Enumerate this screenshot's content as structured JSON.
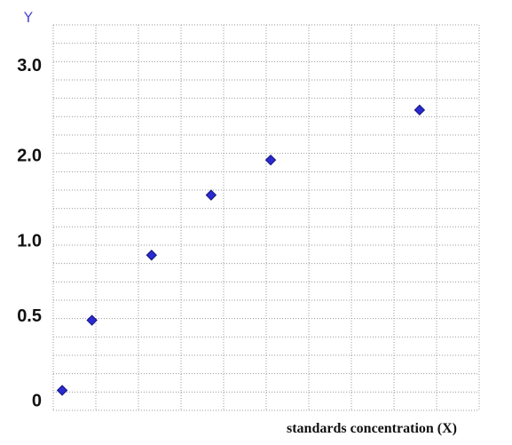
{
  "chart_data": {
    "type": "scatter",
    "ylabel": "Y",
    "xlabel": "standards concentration (X)",
    "x": [
      1,
      2,
      4,
      6,
      8,
      13
    ],
    "y": [
      0.1,
      0.8,
      1.45,
      2.05,
      2.4,
      2.9
    ],
    "xlim": [
      0.7,
      15
    ],
    "yticks": [
      "3.0",
      "2.0",
      "1.0",
      "0.5",
      "0"
    ],
    "ytick_values": [
      3.35,
      2.45,
      1.6,
      0.85,
      0
    ],
    "ylim": [
      -0.1,
      3.75
    ],
    "grid": true,
    "colors": {
      "marker": "#2a2ad0",
      "marker_edge": "#14147a",
      "grid": "#9a9a9a"
    }
  }
}
